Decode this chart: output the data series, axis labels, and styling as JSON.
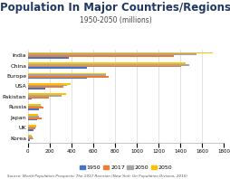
{
  "title": "Population In Major Countries/Regions",
  "subtitle": "1950-2050 (millions)",
  "source": "Source: World Population Prospects: The 1917 Revision (New York: Un Population Division, 2015)",
  "categories": [
    "Korea",
    "UK",
    "Japan",
    "Russia",
    "Pakistan",
    "USA",
    "Europe",
    "China",
    "India"
  ],
  "series": {
    "1950": [
      20,
      50,
      83,
      102,
      40,
      158,
      547,
      544,
      376
    ],
    "2017": [
      51,
      66,
      127,
      144,
      197,
      324,
      742,
      1410,
      1339
    ],
    "2050_low": [
      42,
      75,
      102,
      132,
      310,
      360,
      716,
      1480,
      1550
    ],
    "2050": [
      38,
      75,
      95,
      120,
      350,
      390,
      715,
      1450,
      1700
    ]
  },
  "colors": {
    "1950": "#4472C4",
    "2017": "#ED7D31",
    "2050_low": "#A5A5A5",
    "2050": "#FFC000"
  },
  "xlim": [
    0,
    1800
  ],
  "xticks": [
    0,
    200,
    400,
    600,
    800,
    1000,
    1200,
    1400,
    1600,
    1800
  ],
  "background_color": "#FFFFFF",
  "title_color": "#1F3864",
  "title_fontsize": 8.5,
  "subtitle_fontsize": 5.5,
  "bar_height": 0.15,
  "bar_gap": 0.5,
  "ylabel_fontsize": 4.5,
  "tick_fontsize": 4,
  "legend_fontsize": 4.5
}
